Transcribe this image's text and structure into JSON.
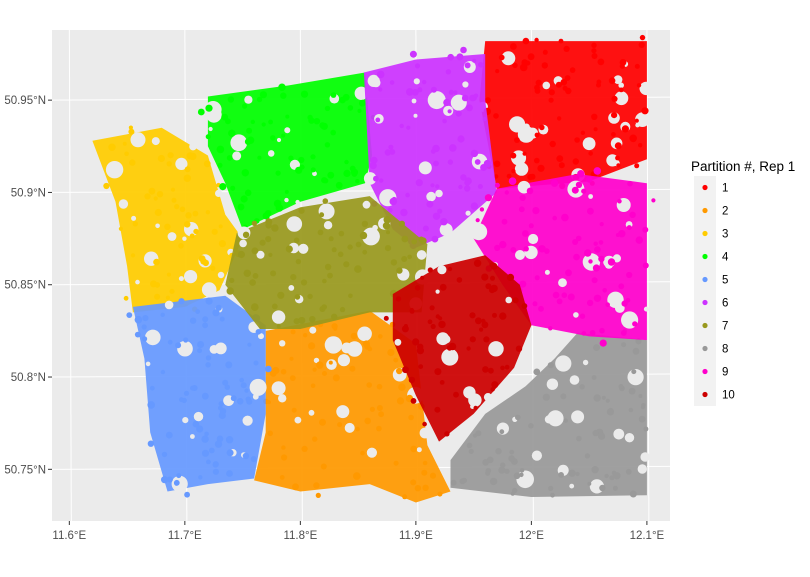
{
  "chart_data": {
    "type": "scatter",
    "title": "",
    "xlabel": "",
    "ylabel": "",
    "x_ticks": [
      "11.6°E",
      "11.7°E",
      "11.8°E",
      "11.9°E",
      "12°E",
      "12.1°E"
    ],
    "y_ticks": [
      "50.75°N",
      "50.8°N",
      "50.85°N",
      "50.9°N",
      "50.95°N"
    ],
    "x_tick_values": [
      11.6,
      11.7,
      11.8,
      11.9,
      12.0,
      12.1
    ],
    "y_tick_values": [
      50.75,
      50.8,
      50.85,
      50.9,
      50.95
    ],
    "xlim": [
      11.585,
      12.12
    ],
    "ylim": [
      50.722,
      50.988
    ],
    "grid": true,
    "legend": {
      "title": "Partition #, Rep 1",
      "position": "right",
      "entries": [
        {
          "label": "1",
          "color": "#FF0000"
        },
        {
          "label": "2",
          "color": "#FF9900"
        },
        {
          "label": "3",
          "color": "#FFCC00"
        },
        {
          "label": "4",
          "color": "#00FF00"
        },
        {
          "label": "5",
          "color": "#6699FF"
        },
        {
          "label": "6",
          "color": "#CC33FF"
        },
        {
          "label": "7",
          "color": "#99991E"
        },
        {
          "label": "8",
          "color": "#999999"
        },
        {
          "label": "9",
          "color": "#FF00CC"
        },
        {
          "label": "10",
          "color": "#CC0000"
        }
      ]
    },
    "series": [
      {
        "name": "1",
        "color": "#FF0000",
        "polygon": [
          [
            11.96,
            50.982
          ],
          [
            12.1,
            50.982
          ],
          [
            12.1,
            50.918
          ],
          [
            12.05,
            50.906
          ],
          [
            11.97,
            50.902
          ],
          [
            11.955,
            50.95
          ]
        ]
      },
      {
        "name": "2",
        "color": "#FF9900",
        "polygon": [
          [
            11.77,
            50.825
          ],
          [
            11.86,
            50.836
          ],
          [
            11.9,
            50.818
          ],
          [
            11.91,
            50.763
          ],
          [
            11.93,
            50.738
          ],
          [
            11.9,
            50.732
          ],
          [
            11.86,
            50.742
          ],
          [
            11.8,
            50.738
          ],
          [
            11.76,
            50.744
          ],
          [
            11.77,
            50.77
          ]
        ]
      },
      {
        "name": "3",
        "color": "#FFCC00",
        "polygon": [
          [
            11.62,
            50.928
          ],
          [
            11.68,
            50.935
          ],
          [
            11.72,
            50.92
          ],
          [
            11.735,
            50.888
          ],
          [
            11.75,
            50.875
          ],
          [
            11.73,
            50.847
          ],
          [
            11.7,
            50.838
          ],
          [
            11.655,
            50.835
          ],
          [
            11.65,
            50.86
          ],
          [
            11.64,
            50.895
          ]
        ]
      },
      {
        "name": "4",
        "color": "#00FF00",
        "polygon": [
          [
            11.72,
            50.952
          ],
          [
            11.79,
            50.958
          ],
          [
            11.856,
            50.965
          ],
          [
            11.862,
            50.92
          ],
          [
            11.856,
            50.905
          ],
          [
            11.8,
            50.895
          ],
          [
            11.75,
            50.88
          ],
          [
            11.735,
            50.905
          ],
          [
            11.72,
            50.925
          ]
        ]
      },
      {
        "name": "5",
        "color": "#6699FF",
        "polygon": [
          [
            11.655,
            50.838
          ],
          [
            11.735,
            50.844
          ],
          [
            11.77,
            50.828
          ],
          [
            11.77,
            50.78
          ],
          [
            11.76,
            50.745
          ],
          [
            11.72,
            50.742
          ],
          [
            11.685,
            50.738
          ],
          [
            11.67,
            50.77
          ],
          [
            11.665,
            50.81
          ]
        ]
      },
      {
        "name": "6",
        "color": "#CC33FF",
        "polygon": [
          [
            11.855,
            50.965
          ],
          [
            11.9,
            50.972
          ],
          [
            11.96,
            50.975
          ],
          [
            11.96,
            50.95
          ],
          [
            11.97,
            50.9
          ],
          [
            11.93,
            50.878
          ],
          [
            11.9,
            50.87
          ],
          [
            11.88,
            50.88
          ],
          [
            11.86,
            50.905
          ]
        ]
      },
      {
        "name": "7",
        "color": "#99991E",
        "polygon": [
          [
            11.745,
            50.878
          ],
          [
            11.8,
            50.892
          ],
          [
            11.86,
            50.898
          ],
          [
            11.91,
            50.872
          ],
          [
            11.905,
            50.835
          ],
          [
            11.86,
            50.835
          ],
          [
            11.8,
            50.826
          ],
          [
            11.765,
            50.826
          ],
          [
            11.735,
            50.85
          ]
        ]
      },
      {
        "name": "8",
        "color": "#999999",
        "polygon": [
          [
            11.93,
            50.74
          ],
          [
            12.0,
            50.735
          ],
          [
            12.1,
            50.736
          ],
          [
            12.1,
            50.82
          ],
          [
            12.04,
            50.824
          ],
          [
            12.02,
            50.81
          ],
          [
            11.995,
            50.795
          ],
          [
            11.96,
            50.78
          ],
          [
            11.93,
            50.755
          ]
        ]
      },
      {
        "name": "9",
        "color": "#FF00CC",
        "polygon": [
          [
            11.97,
            50.902
          ],
          [
            12.04,
            50.91
          ],
          [
            12.1,
            50.905
          ],
          [
            12.1,
            50.82
          ],
          [
            12.05,
            50.822
          ],
          [
            12.0,
            50.828
          ],
          [
            11.975,
            50.85
          ],
          [
            11.95,
            50.875
          ]
        ]
      },
      {
        "name": "10",
        "color": "#CC0000",
        "polygon": [
          [
            11.88,
            50.845
          ],
          [
            11.92,
            50.86
          ],
          [
            11.96,
            50.866
          ],
          [
            11.99,
            50.85
          ],
          [
            12.0,
            50.828
          ],
          [
            11.985,
            50.805
          ],
          [
            11.95,
            50.78
          ],
          [
            11.92,
            50.765
          ],
          [
            11.9,
            50.79
          ],
          [
            11.88,
            50.82
          ]
        ]
      }
    ]
  }
}
